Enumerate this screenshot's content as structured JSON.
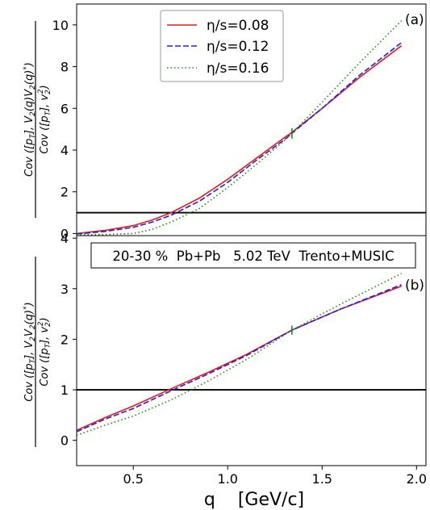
{
  "figure": {
    "xlabel": "q    [GeV/c]",
    "colors": {
      "eta008": "#e41a1c",
      "eta012": "#1f1fe0",
      "eta016": "#1a8c1a"
    }
  },
  "chart_data": [
    {
      "type": "line",
      "panel_label": "(a)",
      "ylabel_parts": [
        "Cov ([p",
        "T",
        "], V",
        "2",
        "(q)V",
        "2",
        "(q)",
        "*",
        ")",
        "Cov ([p",
        "T",
        "], v",
        "2",
        "2",
        ")"
      ],
      "xlim": [
        0.2,
        2.05
      ],
      "ylim": [
        -0.1,
        11
      ],
      "yticks": [
        0,
        2,
        4,
        6,
        8,
        10
      ],
      "legend": {
        "placement": "top-center",
        "entries": [
          "η/s=0.08",
          "η/s=0.12",
          "η/s=0.16"
        ]
      },
      "hline": 1,
      "series": [
        {
          "name": "η/s=0.08",
          "style": "solid",
          "x": [
            0.2,
            0.35,
            0.5,
            0.6,
            0.7,
            0.85,
            1.0,
            1.15,
            1.3,
            1.34,
            1.5,
            1.7,
            1.92
          ],
          "y": [
            0.0,
            0.15,
            0.38,
            0.65,
            1.0,
            1.7,
            2.6,
            3.6,
            4.6,
            4.85,
            6.0,
            7.5,
            9.0
          ]
        },
        {
          "name": "η/s=0.12",
          "style": "dashed",
          "x": [
            0.2,
            0.35,
            0.5,
            0.6,
            0.7,
            0.85,
            1.0,
            1.15,
            1.3,
            1.34,
            1.5,
            1.7,
            1.92
          ],
          "y": [
            -0.02,
            0.1,
            0.3,
            0.55,
            0.88,
            1.55,
            2.45,
            3.5,
            4.5,
            4.8,
            6.0,
            7.6,
            9.15
          ]
        },
        {
          "name": "η/s=0.16",
          "style": "dotted",
          "x": [
            0.2,
            0.35,
            0.5,
            0.6,
            0.7,
            0.85,
            1.0,
            1.15,
            1.3,
            1.34,
            1.5,
            1.7,
            1.92
          ],
          "y": [
            -0.05,
            -0.05,
            0.0,
            0.2,
            0.55,
            1.2,
            2.2,
            3.3,
            4.45,
            4.8,
            6.3,
            8.2,
            10.2
          ]
        }
      ],
      "error_bar": {
        "x": 1.34,
        "y": 4.8,
        "err": 0.25
      }
    },
    {
      "type": "line",
      "panel_label": "(b)",
      "ylabel_parts": [
        "Cov ([p",
        "T",
        "], V",
        "2",
        "V",
        "2",
        "(q)",
        "*",
        ")",
        "Cov ([p",
        "T",
        "], v",
        "2",
        "2",
        ")"
      ],
      "annotation": "20-30 %  Pb+Pb   5.02 TeV  Trento+MUSIC",
      "xlim": [
        0.2,
        2.05
      ],
      "ylim": [
        -0.5,
        4.05
      ],
      "yticks": [
        0,
        1,
        2,
        3,
        4
      ],
      "xticks": [
        0.5,
        1.0,
        1.5,
        2.0
      ],
      "xtick_labels": [
        "0.5",
        "1.0",
        "1.5",
        "2.0"
      ],
      "hline": 1,
      "series": [
        {
          "name": "η/s=0.08",
          "style": "solid",
          "x": [
            0.2,
            0.35,
            0.5,
            0.7,
            0.9,
            1.1,
            1.34,
            1.6,
            1.92
          ],
          "y": [
            0.2,
            0.45,
            0.68,
            1.02,
            1.35,
            1.7,
            2.18,
            2.6,
            3.05
          ]
        },
        {
          "name": "η/s=0.12",
          "style": "dashed",
          "x": [
            0.2,
            0.35,
            0.5,
            0.7,
            0.9,
            1.1,
            1.34,
            1.6,
            1.92
          ],
          "y": [
            0.17,
            0.42,
            0.63,
            0.98,
            1.32,
            1.68,
            2.18,
            2.6,
            3.08
          ]
        },
        {
          "name": "η/s=0.16",
          "style": "dotted",
          "x": [
            0.2,
            0.35,
            0.5,
            0.7,
            0.9,
            1.1,
            1.34,
            1.6,
            1.92
          ],
          "y": [
            0.1,
            0.3,
            0.48,
            0.8,
            1.18,
            1.6,
            2.18,
            2.7,
            3.3
          ]
        }
      ],
      "error_bar": {
        "x": 1.34,
        "y": 2.18,
        "err": 0.09
      }
    }
  ]
}
